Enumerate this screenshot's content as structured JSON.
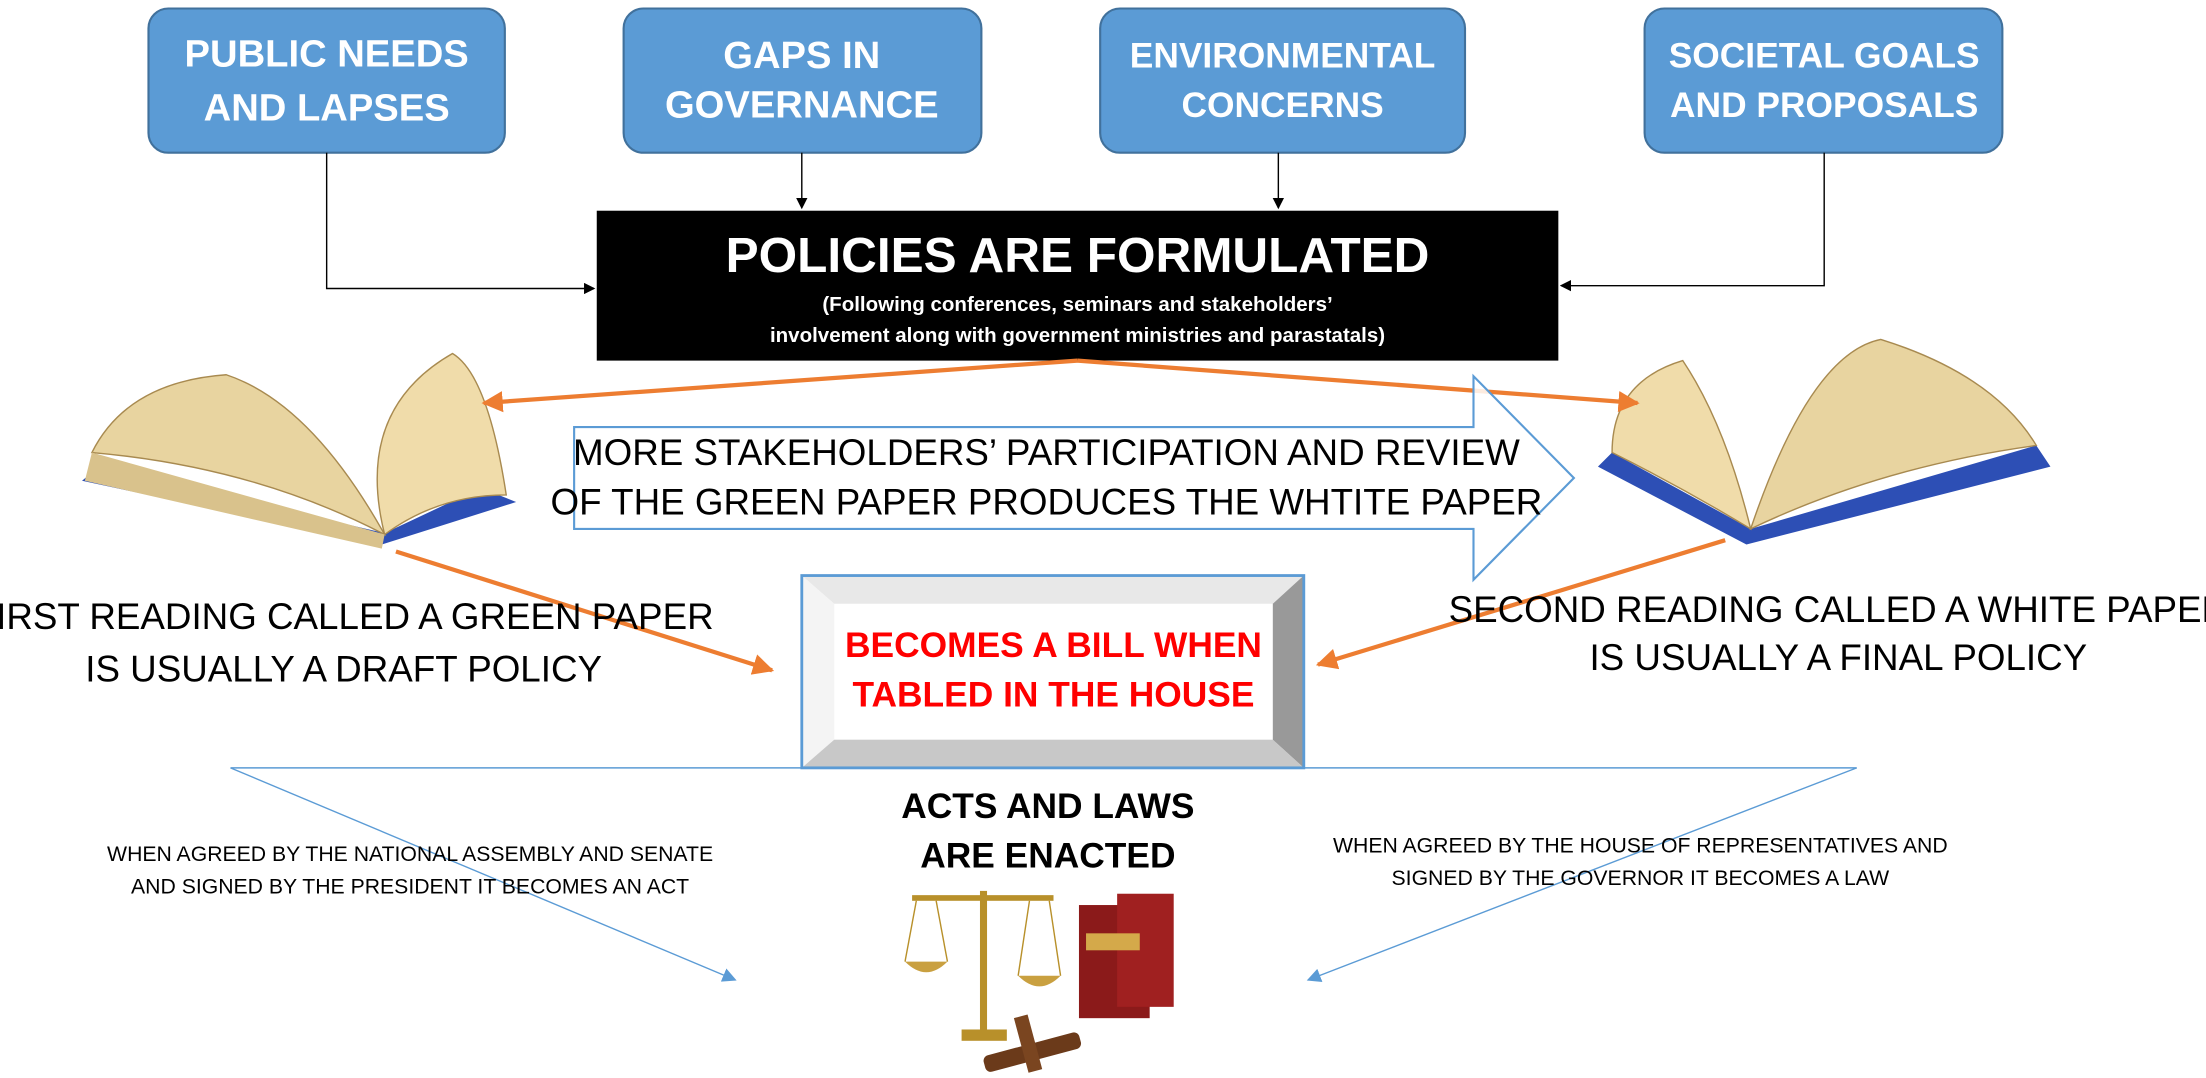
{
  "sources": [
    {
      "lines": [
        "PUBLIC NEEDS",
        "AND LAPSES"
      ]
    },
    {
      "lines": [
        "GAPS IN",
        "GOVERNANCE"
      ]
    },
    {
      "lines": [
        "ENVIRONMENTAL",
        "CONCERNS"
      ]
    },
    {
      "lines": [
        "SOCIETAL GOALS",
        "AND PROPOSALS"
      ]
    }
  ],
  "policy": {
    "title": "POLICIES ARE FORMULATED",
    "note": [
      "(Following conferences, seminars and stakeholders’",
      "involvement along with government ministries and parastatals)"
    ]
  },
  "review": {
    "lines": [
      "MORE STAKEHOLDERS’ PARTICIPATION AND REVIEW",
      "OF THE GREEN PAPER PRODUCES THE WHTITE PAPER"
    ]
  },
  "green_paper": {
    "lines": [
      "FIRST READING CALLED A GREEN PAPER",
      "IS USUALLY A DRAFT POLICY"
    ]
  },
  "white_paper": {
    "lines": [
      "SECOND READING CALLED A WHITE PAPER",
      "IS USUALLY A FINAL POLICY"
    ]
  },
  "bill": {
    "lines": [
      "BECOMES A BILL WHEN",
      "TABLED IN THE HOUSE"
    ]
  },
  "acts": {
    "lines": [
      "ACTS AND LAWS",
      "ARE ENACTED"
    ]
  },
  "act_path": {
    "lines": [
      "WHEN AGREED BY THE NATIONAL ASSEMBLY AND SENATE",
      "AND SIGNED BY THE PRESIDENT IT BECOMES AN ACT"
    ]
  },
  "law_path": {
    "lines": [
      "WHEN AGREED BY THE HOUSE OF REPRESENTATIVES AND",
      "SIGNED BY THE GOVERNOR IT BECOMES A LAW"
    ]
  }
}
